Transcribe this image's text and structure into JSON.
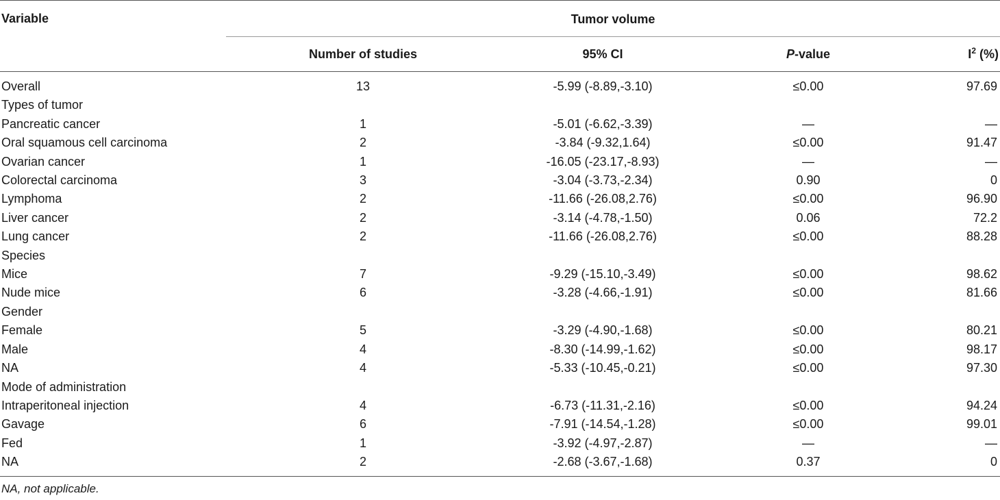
{
  "header": {
    "variable": "Variable",
    "group": "Tumor volume",
    "number_of_studies": "Number of studies",
    "ci": "95% CI",
    "p_italic": "P",
    "p_rest": "-value",
    "i2_base": "I",
    "i2_sup": "2",
    "i2_rest": " (%)"
  },
  "rows": [
    {
      "variable": "Overall",
      "n": "13",
      "ci": "-5.99 (-8.89,-3.10)",
      "p": "≤0.00",
      "i2": "97.69"
    },
    {
      "variable": "Types of tumor",
      "n": "",
      "ci": "",
      "p": "",
      "i2": ""
    },
    {
      "variable": "Pancreatic cancer",
      "n": "1",
      "ci": "-5.01 (-6.62,-3.39)",
      "p": "—",
      "i2": "—"
    },
    {
      "variable": "Oral squamous cell carcinoma",
      "n": "2",
      "ci": "-3.84 (-9.32,1.64)",
      "p": "≤0.00",
      "i2": "91.47"
    },
    {
      "variable": "Ovarian cancer",
      "n": "1",
      "ci": "-16.05 (-23.17,-8.93)",
      "p": "—",
      "i2": "—"
    },
    {
      "variable": "Colorectal carcinoma",
      "n": "3",
      "ci": "-3.04 (-3.73,-2.34)",
      "p": "0.90",
      "i2": "0"
    },
    {
      "variable": "Lymphoma",
      "n": "2",
      "ci": "-11.66 (-26.08,2.76)",
      "p": "≤0.00",
      "i2": "96.90"
    },
    {
      "variable": "Liver cancer",
      "n": "2",
      "ci": "-3.14 (-4.78,-1.50)",
      "p": "0.06",
      "i2": "72.2"
    },
    {
      "variable": "Lung cancer",
      "n": "2",
      "ci": "-11.66 (-26.08,2.76)",
      "p": "≤0.00",
      "i2": "88.28"
    },
    {
      "variable": "Species",
      "n": "",
      "ci": "",
      "p": "",
      "i2": ""
    },
    {
      "variable": "Mice",
      "n": "7",
      "ci": "-9.29 (-15.10,-3.49)",
      "p": "≤0.00",
      "i2": "98.62"
    },
    {
      "variable": "Nude mice",
      "n": "6",
      "ci": "-3.28 (-4.66,-1.91)",
      "p": "≤0.00",
      "i2": "81.66"
    },
    {
      "variable": "Gender",
      "n": "",
      "ci": "",
      "p": "",
      "i2": ""
    },
    {
      "variable": "Female",
      "n": "5",
      "ci": "-3.29 (-4.90,-1.68)",
      "p": "≤0.00",
      "i2": "80.21"
    },
    {
      "variable": "Male",
      "n": "4",
      "ci": "-8.30 (-14.99,-1.62)",
      "p": "≤0.00",
      "i2": "98.17"
    },
    {
      "variable": "NA",
      "n": "4",
      "ci": "-5.33 (-10.45,-0.21)",
      "p": "≤0.00",
      "i2": "97.30"
    },
    {
      "variable": "Mode of administration",
      "n": "",
      "ci": "",
      "p": "",
      "i2": ""
    },
    {
      "variable": "Intraperitoneal injection",
      "n": "4",
      "ci": "-6.73 (-11.31,-2.16)",
      "p": "≤0.00",
      "i2": "94.24"
    },
    {
      "variable": "Gavage",
      "n": "6",
      "ci": "-7.91 (-14.54,-1.28)",
      "p": "≤0.00",
      "i2": "99.01"
    },
    {
      "variable": "Fed",
      "n": "1",
      "ci": "-3.92 (-4.97,-2.87)",
      "p": "—",
      "i2": "—"
    },
    {
      "variable": "NA",
      "n": "2",
      "ci": "-2.68 (-3.67,-1.68)",
      "p": "0.37",
      "i2": "0"
    }
  ],
  "footnote": "NA, not applicable."
}
